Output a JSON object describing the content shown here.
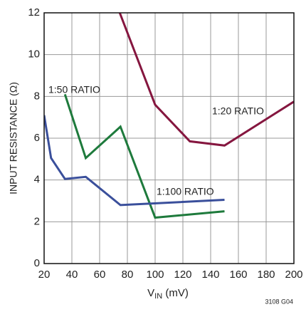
{
  "chart_data": {
    "type": "line",
    "xlabel": {
      "main": "V",
      "sub": "IN",
      "rest": " (mV)"
    },
    "ylabel": "INPUT RESISTANCE (Ω)",
    "footnote": "3108 G04",
    "xlim": [
      20,
      200
    ],
    "xticks": [
      20,
      40,
      60,
      80,
      100,
      120,
      140,
      160,
      180,
      200
    ],
    "ylim": [
      0,
      12
    ],
    "yticks": [
      0,
      2,
      4,
      6,
      8,
      10,
      12
    ],
    "grid": true,
    "series": [
      {
        "name": "1:20 RATIO",
        "color": "#85163f",
        "x": [
          74.5,
          100,
          125,
          150,
          200
        ],
        "values": [
          12,
          7.6,
          5.85,
          5.65,
          7.75
        ]
      },
      {
        "name": "1:50 RATIO",
        "color": "#1e7a3c",
        "x": [
          35,
          50,
          75,
          100,
          150
        ],
        "values": [
          8.1,
          5.05,
          6.55,
          2.2,
          2.5
        ]
      },
      {
        "name": "1:100 RATIO",
        "color": "#3a4f9b",
        "x": [
          20,
          25,
          35,
          50,
          75,
          150
        ],
        "values": [
          7.1,
          5.05,
          4.05,
          4.15,
          2.8,
          3.05
        ]
      }
    ]
  }
}
